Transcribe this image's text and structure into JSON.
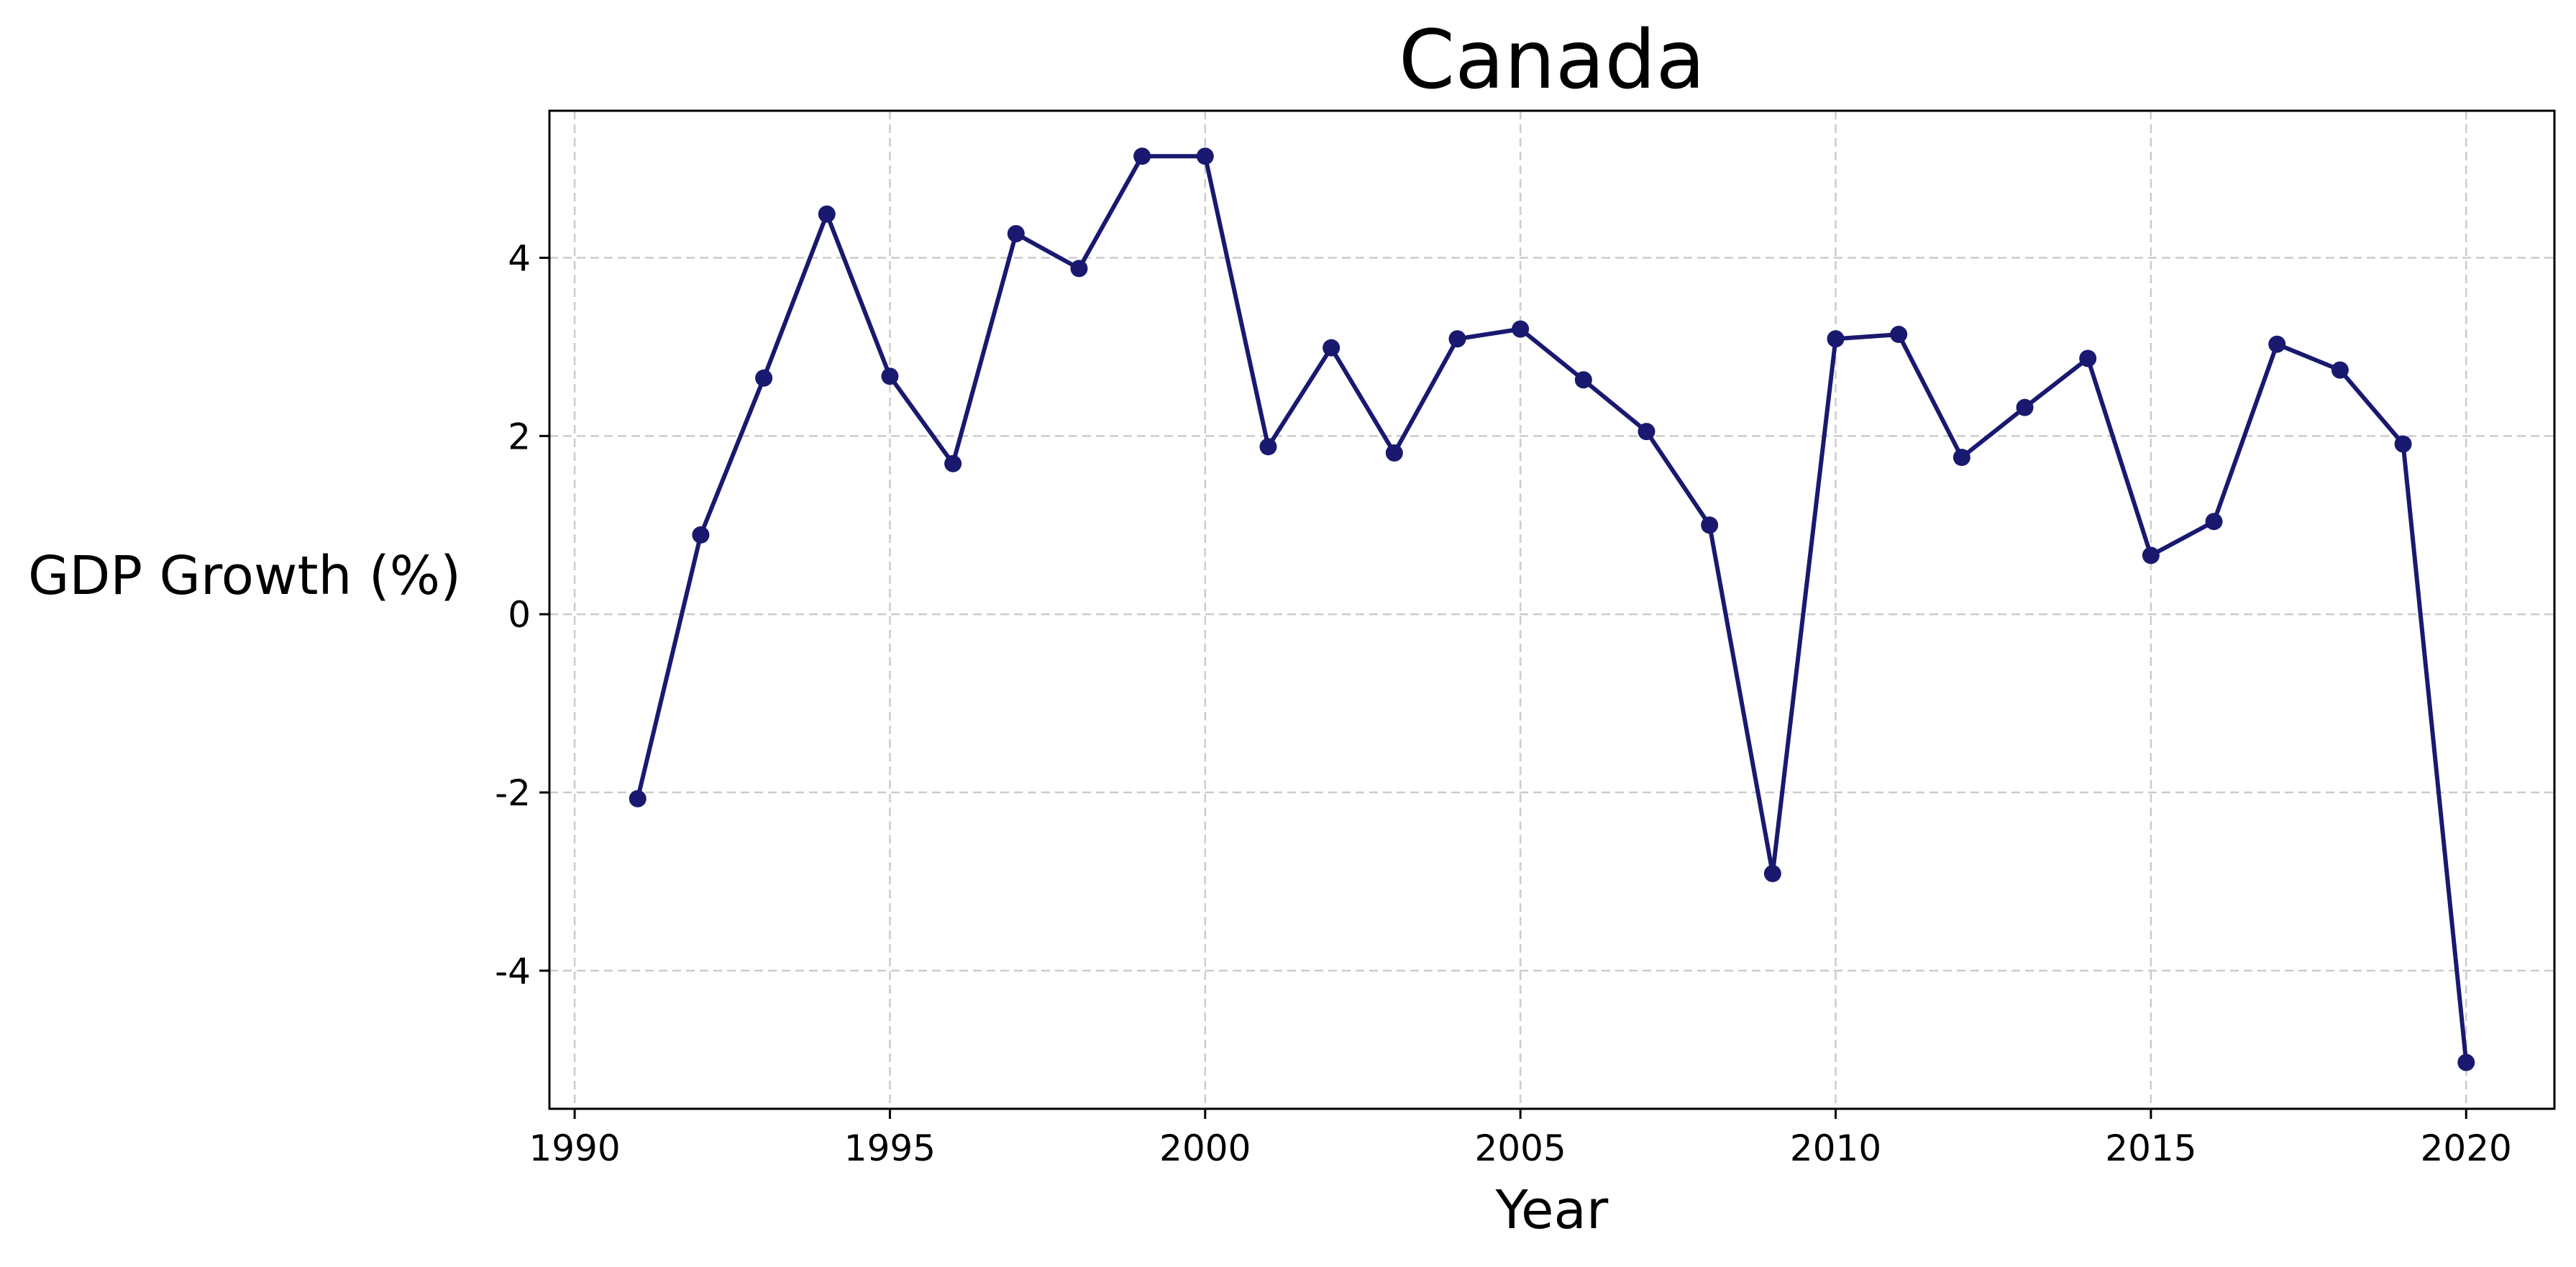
{
  "chart_data": {
    "type": "line",
    "title": "Canada",
    "xlabel": "Year",
    "ylabel": "GDP Growth (%)",
    "xlim": [
      1989.6,
      2021.4
    ],
    "ylim": [
      -5.55,
      5.65
    ],
    "x_ticks": [
      1990,
      1995,
      2000,
      2005,
      2010,
      2015,
      2020
    ],
    "y_ticks": [
      -4,
      -2,
      0,
      2,
      4
    ],
    "y_tick_labels": [
      "-4",
      "-2",
      "0",
      "2",
      "4"
    ],
    "grid": true,
    "legend": "none",
    "colors": {
      "line": "#191970",
      "grid": "#cccccc",
      "axes": "#000000"
    },
    "series": [
      {
        "x": [
          1991,
          1992,
          1993,
          1994,
          1995,
          1996,
          1997,
          1998,
          1999,
          2000,
          2001,
          2002,
          2003,
          2004,
          2005,
          2006,
          2007,
          2008,
          2009,
          2010,
          2011,
          2012,
          2013,
          2014,
          2015,
          2016,
          2017,
          2018,
          2019,
          2020
        ],
        "values": [
          -2.07,
          0.89,
          2.65,
          4.49,
          2.67,
          1.69,
          4.27,
          3.88,
          5.14,
          5.14,
          1.88,
          2.99,
          1.81,
          3.09,
          3.2,
          2.63,
          2.05,
          1.0,
          -2.91,
          3.09,
          3.14,
          1.76,
          2.32,
          2.87,
          0.66,
          1.04,
          3.03,
          2.74,
          1.91,
          -5.03
        ]
      }
    ]
  }
}
